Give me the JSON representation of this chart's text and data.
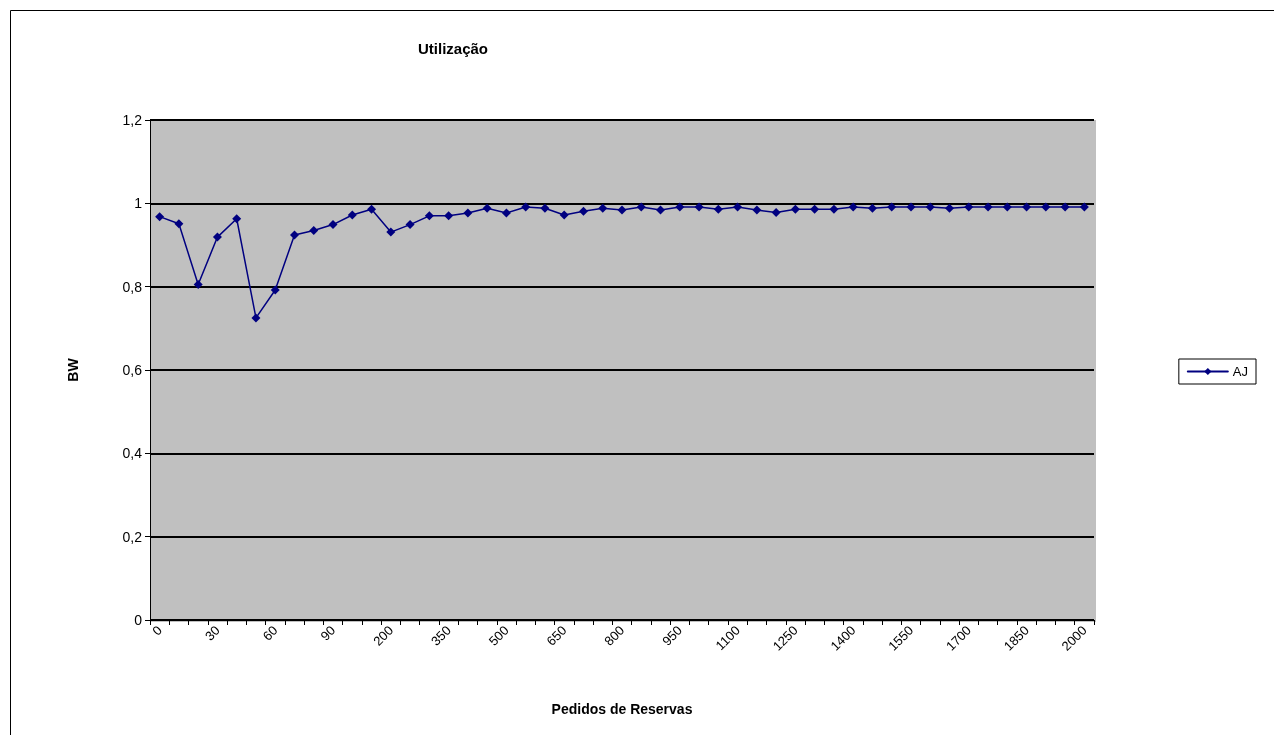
{
  "chart_data": {
    "type": "line",
    "title": "Utilização",
    "xlabel": "Pedidos de Reservas",
    "ylabel": "BW",
    "categories": [
      "0",
      null,
      null,
      "30",
      null,
      null,
      "60",
      null,
      null,
      "90",
      null,
      null,
      "200",
      null,
      null,
      "350",
      null,
      null,
      "500",
      null,
      null,
      "650",
      null,
      null,
      "800",
      null,
      null,
      "950",
      null,
      null,
      "1100",
      null,
      null,
      "1250",
      null,
      null,
      "1400",
      null,
      null,
      "1550",
      null,
      null,
      "1700",
      null,
      null,
      "1850",
      null,
      null,
      "2000"
    ],
    "series": [
      {
        "name": "AJ",
        "color": "#000080",
        "values": [
          0.968,
          0.951,
          0.805,
          0.919,
          0.963,
          0.725,
          0.792,
          0.924,
          0.935,
          0.949,
          0.972,
          0.986,
          0.931,
          0.949,
          0.97,
          0.97,
          0.977,
          0.988,
          0.977,
          0.991,
          0.988,
          0.972,
          0.981,
          0.988,
          0.984,
          0.991,
          0.984,
          0.991,
          0.991,
          0.986,
          0.991,
          0.984,
          0.978,
          0.986,
          0.986,
          0.986,
          0.991,
          0.988,
          0.991,
          0.991,
          0.991,
          0.988,
          0.991,
          0.991,
          0.991,
          0.991,
          0.991,
          0.991,
          0.991
        ]
      }
    ],
    "ylim": [
      0,
      1.2
    ],
    "yticks": [
      0,
      {
        "value": 0.2,
        "label": "0,2"
      },
      {
        "value": 0.4,
        "label": "0,4"
      },
      {
        "value": 0.6,
        "label": "0,6"
      },
      {
        "value": 0.8,
        "label": "0,8"
      },
      1,
      {
        "value": 1.2,
        "label": "1,2"
      }
    ],
    "grid": "y",
    "legend": "right",
    "marker": "diamond",
    "line_style": "solid"
  }
}
